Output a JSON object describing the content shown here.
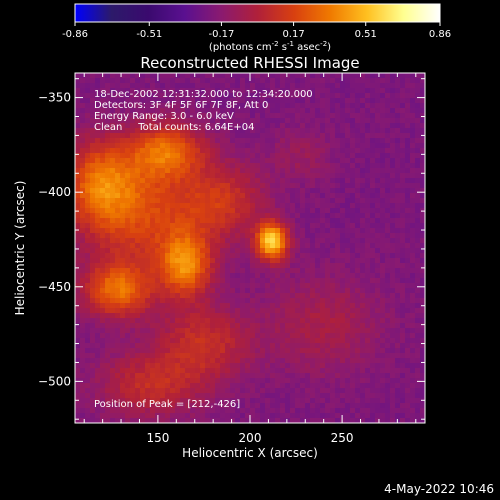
{
  "chart_data": {
    "type": "heatmap",
    "title": "Reconstructed RHESSI Image",
    "xlabel": "Heliocentric X (arcsec)",
    "ylabel": "Heliocentric Y (arcsec)",
    "xlim": [
      105,
      295
    ],
    "ylim": [
      -522,
      -337
    ],
    "x_ticks": [
      150,
      200,
      250
    ],
    "y_ticks": [
      -350,
      -400,
      -450,
      -500
    ],
    "colorbar": {
      "label_main": "(photons cm",
      "label_exp1": "-2",
      "label_mid": " s",
      "label_exp2": "-1",
      "label_end": " asec",
      "label_exp3": "-2",
      "label_close": ")",
      "range": [
        -0.86,
        0.86
      ],
      "ticks": [
        -0.86,
        -0.51,
        -0.17,
        0.17,
        0.51,
        0.86
      ],
      "tick_labels": [
        "-0.86",
        "-0.51",
        "-0.17",
        "0.17",
        "0.51",
        "0.86"
      ],
      "colormap": [
        "#0000ff",
        "#2c1a6a",
        "#3a0a6e",
        "#5a1090",
        "#8a1a70",
        "#b0203a",
        "#d84010",
        "#f07a00",
        "#ffc020",
        "#ffff90",
        "#ffffff"
      ]
    },
    "annotations": [
      "18-Dec-2002 12:31:32.000 to 12:34:20.000",
      "Detectors: 3F 4F 5F 6F 7F 8F, Att 0",
      "Energy Range: 3.0 - 6.0 keV",
      "Clean     Total counts: 6.64E+04"
    ],
    "peak_label": "Position of Peak = [212,-426]",
    "peak": {
      "x": 212,
      "y": -426,
      "value": 0.86
    },
    "sources": [
      {
        "x": 212,
        "y": -426,
        "sx": 6,
        "sy": 7,
        "amp": 0.8
      },
      {
        "x": 165,
        "y": -438,
        "sx": 10,
        "sy": 12,
        "amp": 0.55
      },
      {
        "x": 128,
        "y": -452,
        "sx": 13,
        "sy": 10,
        "amp": 0.5
      },
      {
        "x": 155,
        "y": -378,
        "sx": 14,
        "sy": 10,
        "amp": 0.45
      },
      {
        "x": 118,
        "y": -395,
        "sx": 14,
        "sy": 16,
        "amp": 0.42
      },
      {
        "x": 140,
        "y": -410,
        "sx": 22,
        "sy": 22,
        "amp": 0.38
      },
      {
        "x": 185,
        "y": -405,
        "sx": 16,
        "sy": 14,
        "amp": 0.32
      },
      {
        "x": 175,
        "y": -480,
        "sx": 18,
        "sy": 14,
        "amp": 0.3
      },
      {
        "x": 145,
        "y": -502,
        "sx": 20,
        "sy": 12,
        "amp": 0.28
      },
      {
        "x": 240,
        "y": -470,
        "sx": 22,
        "sy": 18,
        "amp": 0.18
      },
      {
        "x": 228,
        "y": -380,
        "sx": 12,
        "sy": 10,
        "amp": 0.12
      }
    ],
    "background": -0.22
  },
  "footer": {
    "date": "4-May-2022 10:46"
  }
}
